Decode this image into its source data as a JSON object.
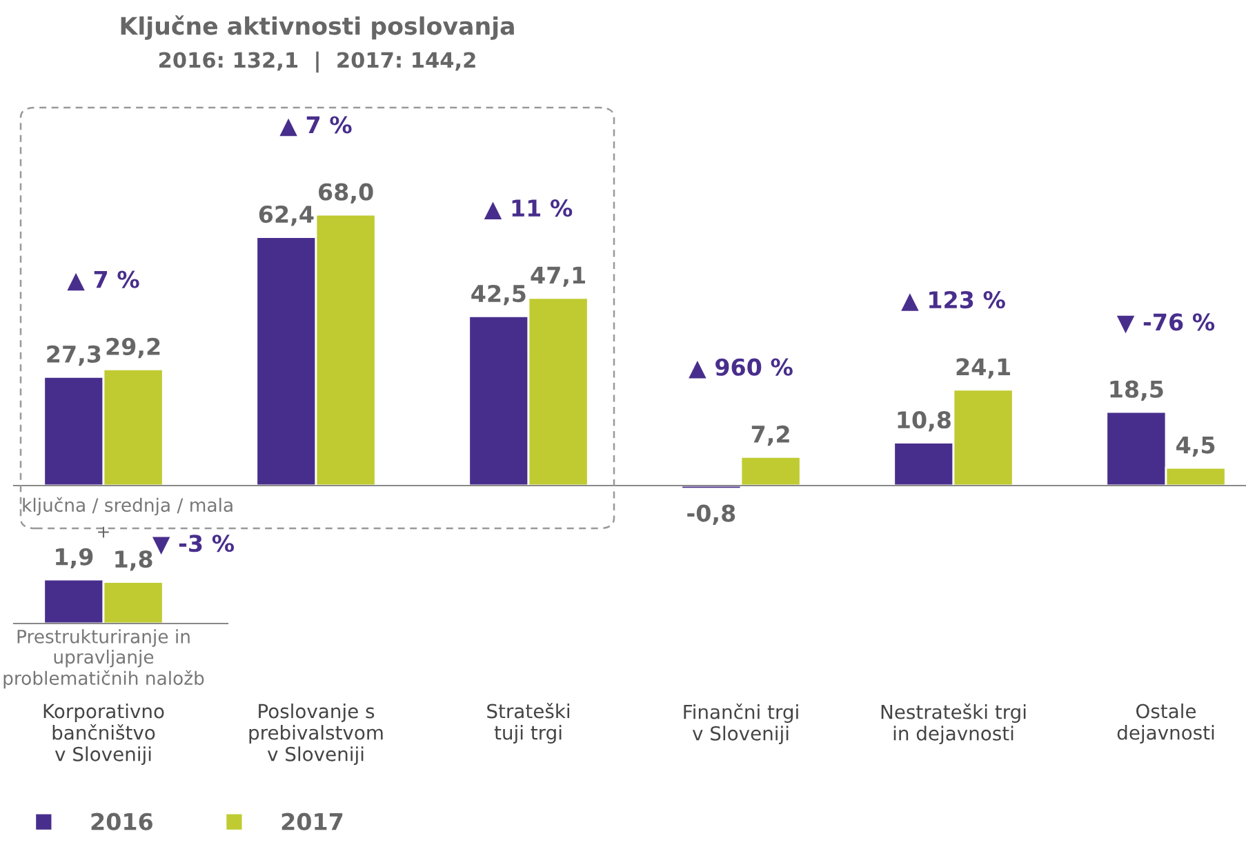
{
  "chart_data": [
    {
      "type": "bar",
      "title": "Ključne aktivnosti poslovanja",
      "subtitle": "2016: 132,1  |  2017: 144,2",
      "categories": [
        "Korporativno\nbančništvo\nv Sloveniji",
        "Poslovanje s\nprebivalstvom\nv Sloveniji",
        "Strateški\ntuji trgi",
        "Finančni trgi\nv Sloveniji",
        "Nestrateški trgi\nin dejavnosti",
        "Ostale\ndejavnosti"
      ],
      "series": [
        {
          "name": "2016",
          "color": "#482e8c",
          "values": [
            27.3,
            62.4,
            42.5,
            -0.8,
            10.8,
            18.5
          ],
          "value_labels": [
            "27,3",
            "62,4",
            "42,5",
            "-0,8",
            "10,8",
            "18,5"
          ]
        },
        {
          "name": "2017",
          "color": "#bfcb30",
          "values": [
            29.2,
            68.0,
            47.1,
            7.2,
            24.1,
            4.5
          ],
          "value_labels": [
            "29,2",
            "68,0",
            "47,1",
            "7,2",
            "24,1",
            "4,5"
          ]
        }
      ],
      "annotations": [
        "▲ 7 %",
        "▲ 7 %",
        "▲ 11 %",
        "▲ 960 %",
        "▲ 123 %",
        "▼ -76 %",
        "ključna / srednja / mala"
      ],
      "tick_labels": "x",
      "legend": "bottom left"
    },
    {
      "type": "bar",
      "categories": [
        "Prestrukturiranje in\nupravljanje\nproblematičnih naložb"
      ],
      "series": [
        {
          "color": "#482e8c",
          "values": [
            1.9
          ],
          "value_labels": [
            "1,9"
          ]
        },
        {
          "color": "#bfcb30",
          "values": [
            1.8
          ],
          "value_labels": [
            "1,8"
          ]
        }
      ],
      "annotations": [
        "+",
        "▼ -3 %"
      ],
      "tick_labels": "x"
    }
  ]
}
